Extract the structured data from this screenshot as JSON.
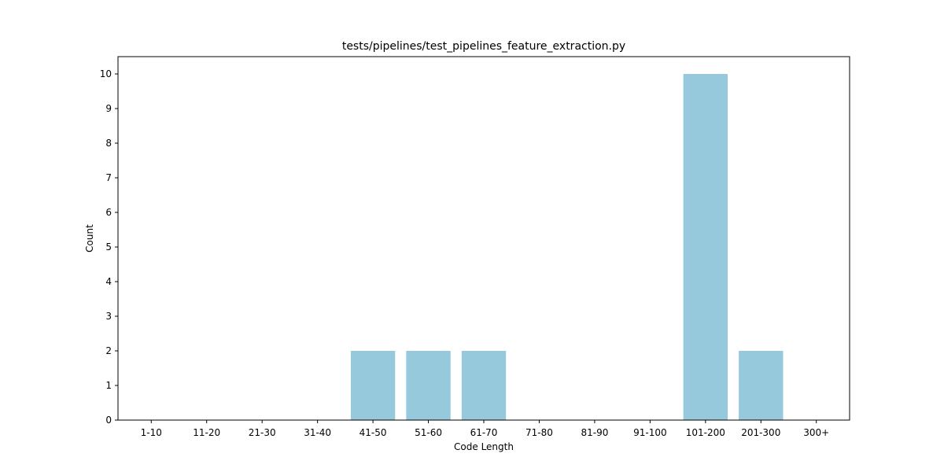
{
  "chart_data": {
    "type": "bar",
    "title": "tests/pipelines/test_pipelines_feature_extraction.py",
    "xlabel": "Code Length",
    "ylabel": "Count",
    "categories": [
      "1-10",
      "11-20",
      "21-30",
      "31-40",
      "41-50",
      "51-60",
      "61-70",
      "71-80",
      "81-90",
      "91-100",
      "101-200",
      "201-300",
      "300+"
    ],
    "values": [
      0,
      0,
      0,
      0,
      2,
      2,
      2,
      0,
      0,
      0,
      10,
      2,
      0
    ],
    "ylim": [
      0,
      10.5
    ],
    "yticks": [
      0,
      1,
      2,
      3,
      4,
      5,
      6,
      7,
      8,
      9,
      10
    ],
    "bar_color": "#96c9dc",
    "grid": false,
    "legend": "none"
  }
}
